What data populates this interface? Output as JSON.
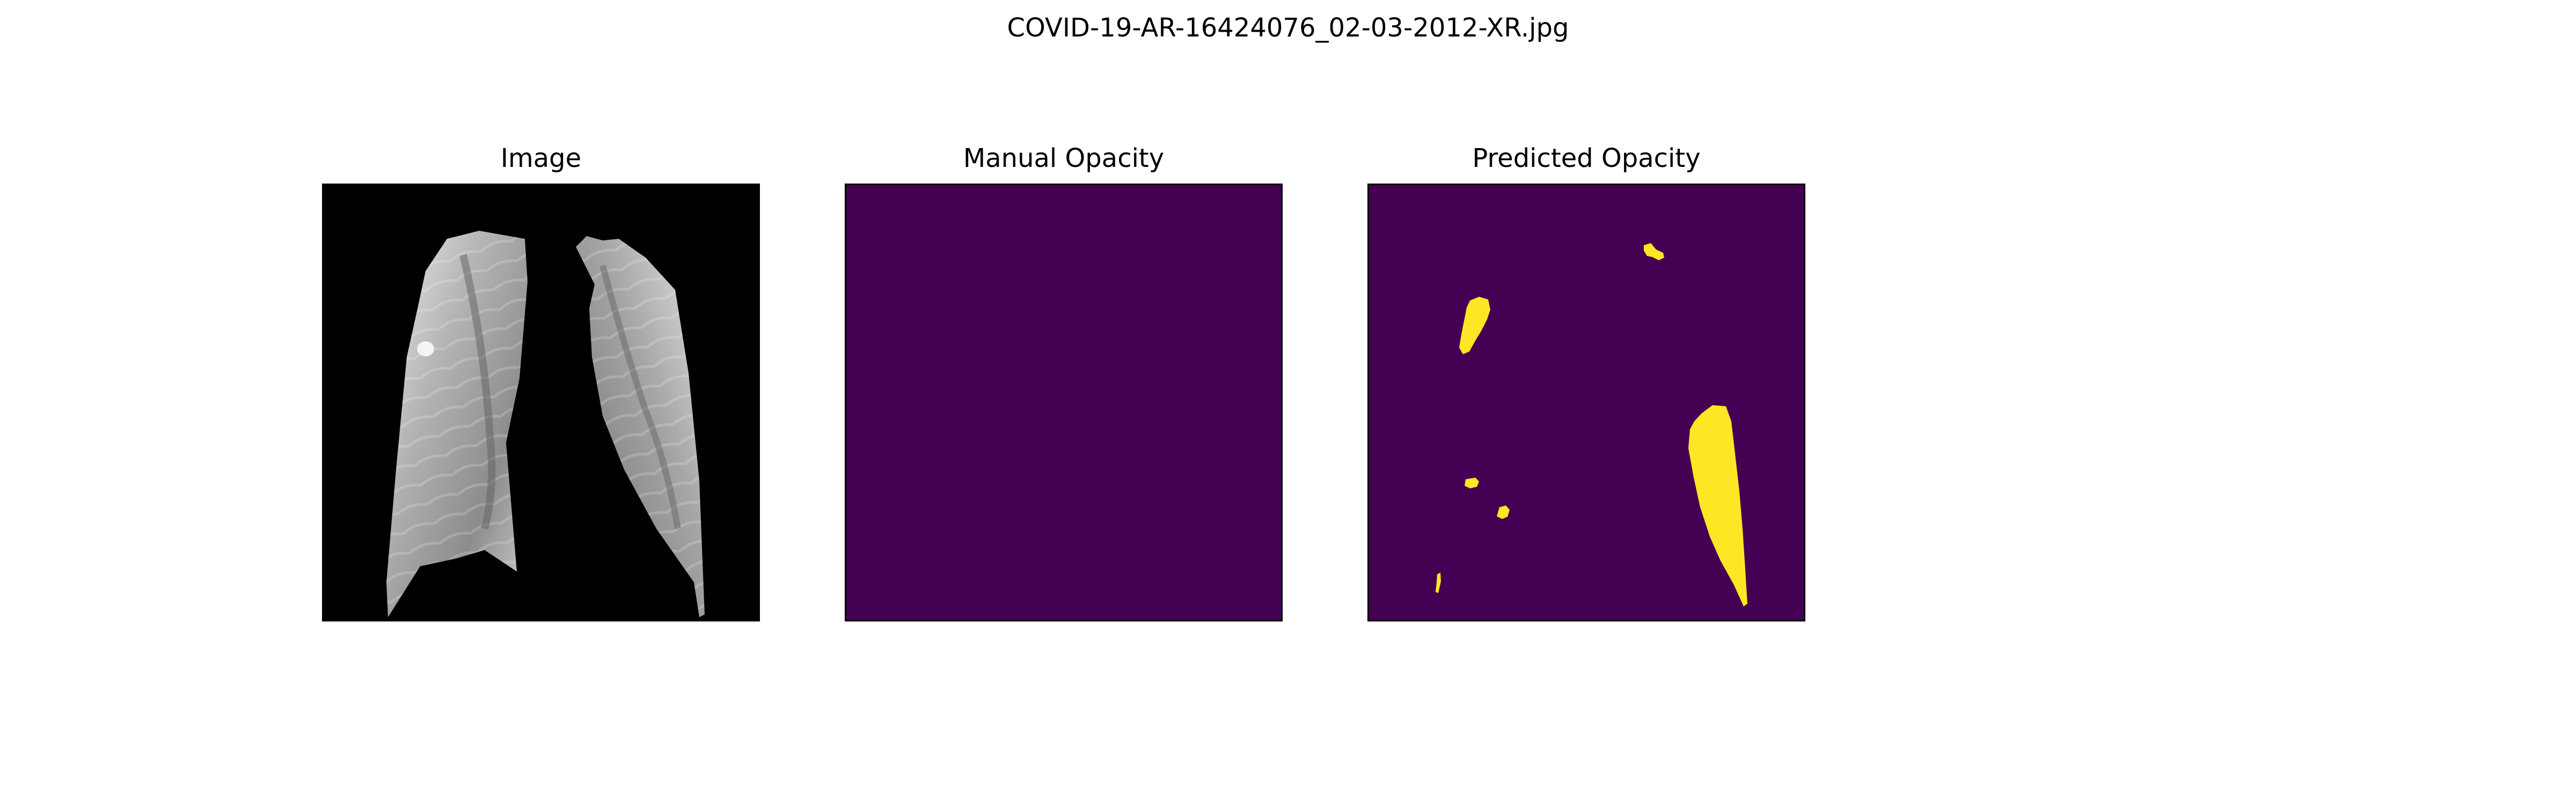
{
  "figure": {
    "title": "COVID-19-AR-16424076_02-03-2012-XR.jpg"
  },
  "panels": [
    {
      "title": "Image",
      "content": "chest-xray-lungs"
    },
    {
      "title": "Manual Opacity",
      "content": "empty-mask"
    },
    {
      "title": "Predicted Opacity",
      "content": "predicted-mask"
    }
  ],
  "colors": {
    "xray_background": "#000000",
    "mask_background": "#440154",
    "mask_foreground": "#fde725",
    "lung_light": "#e8e8e8",
    "lung_mid": "#a8a8a8",
    "lung_dark": "#6e6e6e"
  }
}
